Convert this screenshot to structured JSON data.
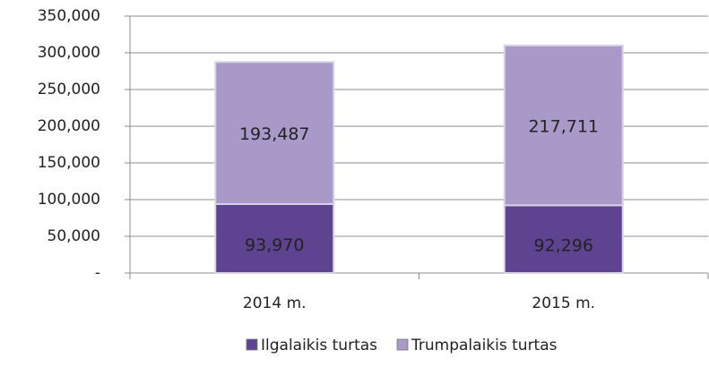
{
  "chart_data": {
    "type": "stacked_bar",
    "categories": [
      "2014 m.",
      "2015 m."
    ],
    "series": [
      {
        "name": "Ilgalaikis turtas",
        "color": "#5e4490",
        "values": [
          93970,
          92296
        ],
        "value_labels": [
          "93,970",
          "92,296"
        ]
      },
      {
        "name": "Trumpalaikis turtas",
        "color": "#a899c9",
        "values": [
          193487,
          217711
        ],
        "value_labels": [
          "193,487",
          "217,711"
        ]
      }
    ],
    "ylim": [
      0,
      350000
    ],
    "yticks": [
      {
        "value": 0,
        "label": "-"
      },
      {
        "value": 50000,
        "label": "50,000"
      },
      {
        "value": 100000,
        "label": "100,000"
      },
      {
        "value": 150000,
        "label": "150,000"
      },
      {
        "value": 200000,
        "label": "200,000"
      },
      {
        "value": 250000,
        "label": "250,000"
      },
      {
        "value": 300000,
        "label": "300,000"
      },
      {
        "value": 350000,
        "label": "350,000"
      }
    ],
    "grid": true,
    "legend": "bottom"
  }
}
